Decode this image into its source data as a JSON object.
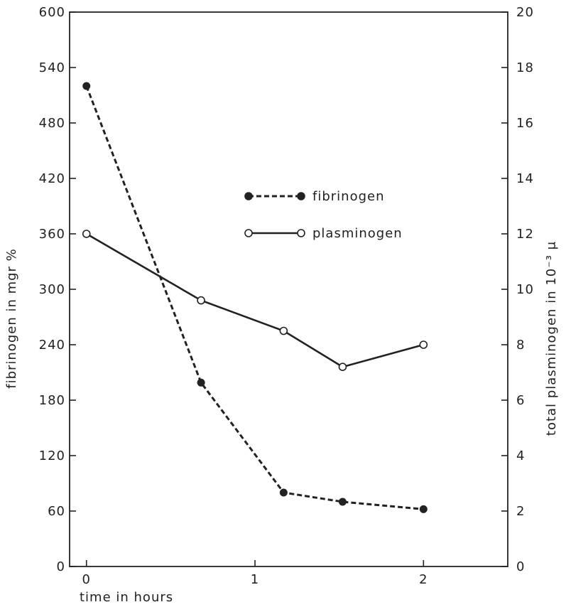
{
  "chart_data": {
    "type": "line",
    "xlabel": "time in hours",
    "ylabel_left": "fibrinogen in mgr %",
    "ylabel_right": "total plasminogen in 10⁻³ μ",
    "xlim": [
      -0.1,
      2.5
    ],
    "x_ticks": [
      0,
      1,
      2
    ],
    "ylim_left": [
      0,
      600
    ],
    "y_ticks_left": [
      0,
      60,
      120,
      180,
      240,
      300,
      360,
      420,
      480,
      540,
      600
    ],
    "ylim_right": [
      0,
      20
    ],
    "y_ticks_right": [
      0,
      2,
      4,
      6,
      8,
      10,
      12,
      14,
      16,
      18,
      20
    ],
    "series": [
      {
        "name": "fibrinogen",
        "axis": "left",
        "style": "dashed",
        "marker": "filled-circle",
        "color": "#222222",
        "x": [
          0,
          0.68,
          1.17,
          1.52,
          2.0
        ],
        "y": [
          520,
          199,
          80,
          70,
          62
        ]
      },
      {
        "name": "plasminogen",
        "axis": "right",
        "style": "solid",
        "marker": "open-circle",
        "color": "#222222",
        "x": [
          0,
          0.68,
          1.17,
          1.52,
          2.0
        ],
        "y": [
          12.0,
          9.6,
          8.5,
          7.2,
          8.0
        ]
      }
    ],
    "legend_position": "center"
  }
}
